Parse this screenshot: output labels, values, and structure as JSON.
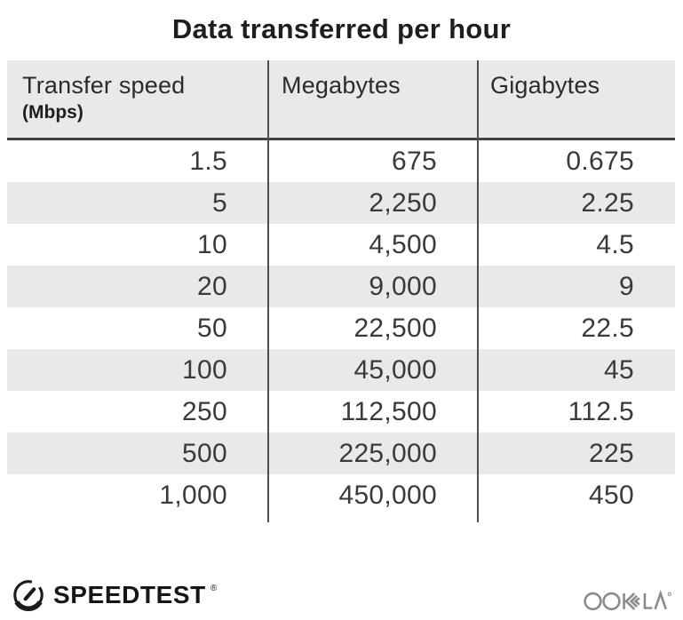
{
  "title": "Data transferred per hour",
  "table": {
    "columns": [
      {
        "label": "Transfer speed",
        "sublabel": "(Mbps)"
      },
      {
        "label": "Megabytes",
        "sublabel": ""
      },
      {
        "label": "Gigabytes",
        "sublabel": ""
      }
    ],
    "rows": [
      [
        "1.5",
        "675",
        "0.675"
      ],
      [
        "5",
        "2,250",
        "2.25"
      ],
      [
        "10",
        "4,500",
        "4.5"
      ],
      [
        "20",
        "9,000",
        "9"
      ],
      [
        "50",
        "22,500",
        "22.5"
      ],
      [
        "100",
        "45,000",
        "45"
      ],
      [
        "250",
        "112,500",
        "112.5"
      ],
      [
        "500",
        "225,000",
        "225"
      ],
      [
        "1,000",
        "450,000",
        "450"
      ]
    ]
  },
  "chart_data": {
    "type": "table",
    "title": "Data transferred per hour",
    "columns": [
      "Transfer speed (Mbps)",
      "Megabytes",
      "Gigabytes"
    ],
    "rows": [
      [
        1.5,
        675,
        0.675
      ],
      [
        5,
        2250,
        2.25
      ],
      [
        10,
        4500,
        4.5
      ],
      [
        20,
        9000,
        9
      ],
      [
        50,
        22500,
        22.5
      ],
      [
        100,
        45000,
        45
      ],
      [
        250,
        112500,
        112.5
      ],
      [
        500,
        225000,
        225
      ],
      [
        1000,
        450000,
        450
      ]
    ]
  },
  "footer": {
    "speedtest_label": "SPEEDTEST",
    "speedtest_registered": "®",
    "ookla_label": "OOKLA"
  },
  "colors": {
    "background": "#ffffff",
    "row_alt": "#e9e9ec",
    "header_bg": "#e9e9ec",
    "divider": "#4d4d4d",
    "header_rule": "#404040",
    "title_text": "#1e1e1e",
    "data_text": "#3a3a3a",
    "logo_black": "#161616",
    "ookla_gray": "#8b8b8b"
  }
}
